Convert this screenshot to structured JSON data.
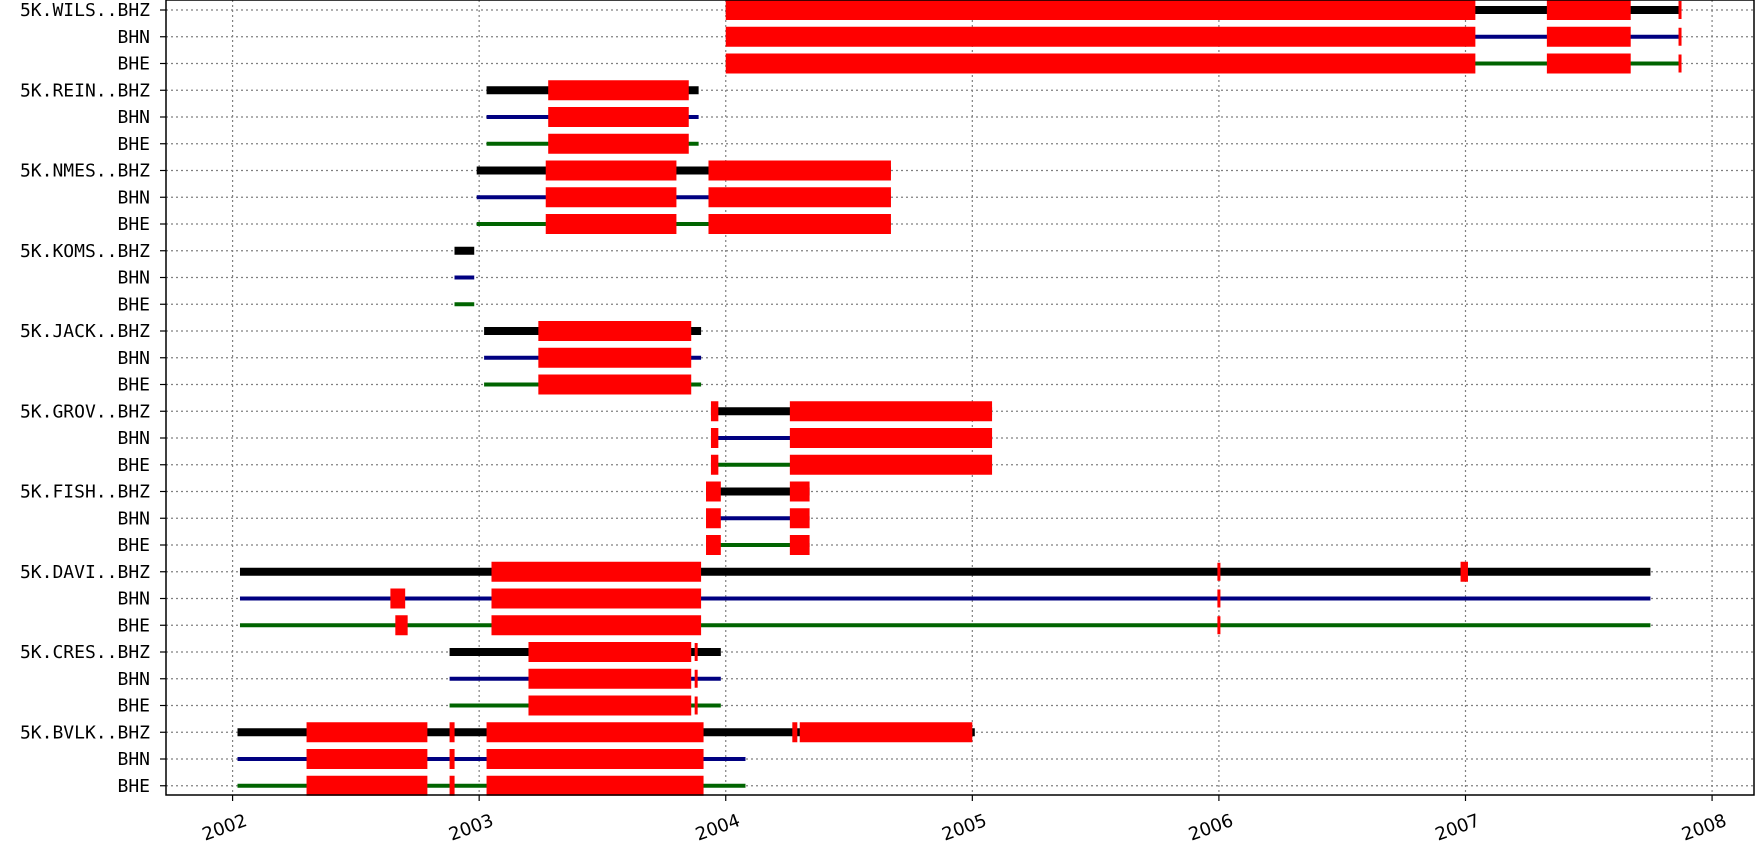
{
  "chart_data": {
    "type": "timeline",
    "x_axis": {
      "min": 2001.73,
      "max": 2008.17,
      "ticks": [
        2002,
        2003,
        2004,
        2005,
        2006,
        2007,
        2008
      ],
      "tick_labels": [
        "2002",
        "2003",
        "2004",
        "2005",
        "2006",
        "2007",
        "2008"
      ],
      "grid": true
    },
    "channel_colors": {
      "BHZ": "#000000",
      "BHN": "#000080",
      "BHE": "#006400"
    },
    "gap_color": "#ff0000",
    "stations": [
      {
        "name": "5K.WILS",
        "label": "5K.WILS..BHZ",
        "span": [
          2004.0,
          2007.87
        ],
        "gaps": [
          [
            2004.0,
            2007.04
          ],
          [
            2007.33,
            2007.67
          ]
        ],
        "gap_ticks": [
          2007.87
        ]
      },
      {
        "name": "5K.REIN",
        "label": "5K.REIN..BHZ",
        "span": [
          2003.03,
          2003.89
        ],
        "gaps": [
          [
            2003.28,
            2003.85
          ]
        ],
        "gap_ticks": []
      },
      {
        "name": "5K.NMES",
        "label": "5K.NMES..BHZ",
        "span": [
          2002.99,
          2004.67
        ],
        "gaps": [
          [
            2003.27,
            2003.8
          ],
          [
            2003.93,
            2004.67
          ]
        ],
        "gap_ticks": []
      },
      {
        "name": "5K.KOMS",
        "label": "5K.KOMS..BHZ",
        "span": [
          2002.9,
          2002.98
        ],
        "gaps": [],
        "gap_ticks": []
      },
      {
        "name": "5K.JACK",
        "label": "5K.JACK..BHZ",
        "span": [
          2003.02,
          2003.9
        ],
        "gaps": [
          [
            2003.24,
            2003.86
          ]
        ],
        "gap_ticks": []
      },
      {
        "name": "5K.GROV",
        "label": "5K.GROV..BHZ",
        "span": [
          2003.94,
          2005.08
        ],
        "gaps": [
          [
            2003.94,
            2003.97
          ],
          [
            2004.26,
            2005.08
          ]
        ],
        "gap_ticks": []
      },
      {
        "name": "5K.FISH",
        "label": "5K.FISH..BHZ",
        "span": [
          2003.92,
          2004.34
        ],
        "gaps": [
          [
            2003.92,
            2003.98
          ],
          [
            2004.26,
            2004.34
          ]
        ],
        "gap_ticks": []
      },
      {
        "name": "5K.DAVI",
        "label": "5K.DAVI..BHZ",
        "span": [
          2002.03,
          2007.75
        ],
        "gaps": [
          [
            2003.05,
            2003.9
          ]
        ],
        "gap_ticks": [
          2006.0
        ],
        "channel_gaps": {
          "BHZ": [
            [
              2006.98,
              2007.01
            ]
          ],
          "BHN": [
            [
              2002.64,
              2002.7
            ]
          ],
          "BHE": [
            [
              2002.66,
              2002.71
            ]
          ]
        }
      },
      {
        "name": "5K.CRES",
        "label": "5K.CRES..BHZ",
        "span": [
          2002.88,
          2003.98
        ],
        "gaps": [
          [
            2003.2,
            2003.86
          ]
        ],
        "gap_ticks": [
          2003.88
        ]
      },
      {
        "name": "5K.BVLK",
        "label": "5K.BVLK..BHZ",
        "span": [
          2002.02,
          2004.08
        ],
        "gaps": [
          [
            2002.3,
            2002.79
          ],
          [
            2002.88,
            2002.89
          ],
          [
            2003.03,
            2003.91
          ]
        ],
        "gap_ticks": [],
        "channel_gaps": {
          "BHZ": [
            [
              2004.27,
              2004.28
            ],
            [
              2004.3,
              2005.0
            ]
          ]
        },
        "channel_span_end": {
          "BHZ": 2005.01
        }
      }
    ]
  }
}
